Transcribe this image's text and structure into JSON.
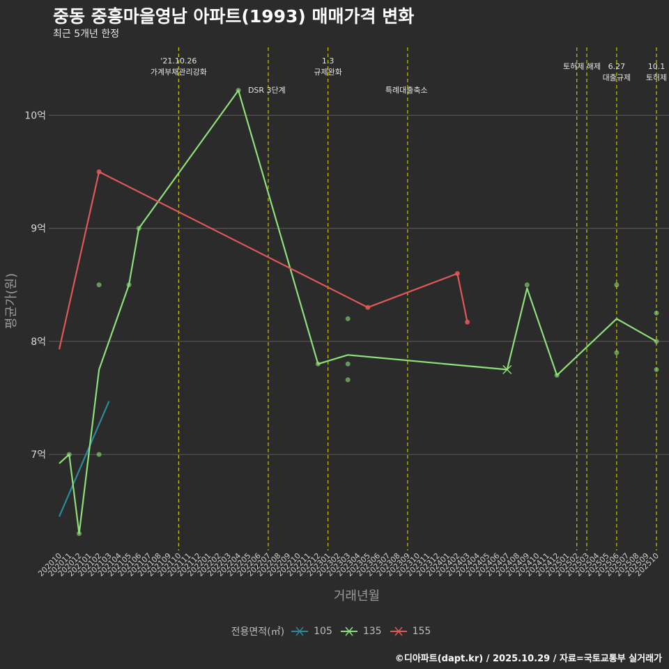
{
  "title": "중동 중흥마을영남 아파트(1993) 매매가격 변화",
  "subtitle": "최근 5개년 한정",
  "caption": "©디아파트(dapt.kr) / 2025.10.29 / 자료=국토교통부 실거래가",
  "legend": {
    "title": "전용면적(㎡)",
    "items": [
      {
        "label": "105",
        "color": "#2a8c99"
      },
      {
        "label": "135",
        "color": "#8ee07a"
      },
      {
        "label": "155",
        "color": "#e05858"
      }
    ]
  },
  "chart_data": {
    "type": "line",
    "title": "중동 중흥마을영남 아파트(1993) 매매가격 변화",
    "xlabel": "거래년월",
    "ylabel": "평균가(원)",
    "ylim": [
      6.15,
      10.6
    ],
    "yticks": [
      {
        "v": 7,
        "label": "7억"
      },
      {
        "v": 8,
        "label": "8억"
      },
      {
        "v": 9,
        "label": "9억"
      },
      {
        "v": 10,
        "label": "10억"
      }
    ],
    "categories": [
      "202010",
      "202011",
      "202012",
      "202101",
      "202102",
      "202103",
      "202104",
      "202105",
      "202106",
      "202107",
      "202108",
      "202109",
      "202110",
      "202111",
      "202112",
      "202201",
      "202202",
      "202203",
      "202204",
      "202205",
      "202206",
      "202207",
      "202208",
      "202209",
      "202210",
      "202211",
      "202212",
      "202301",
      "202302",
      "202303",
      "202304",
      "202305",
      "202306",
      "202307",
      "202308",
      "202309",
      "202310",
      "202311",
      "202312",
      "202401",
      "202402",
      "202403",
      "202404",
      "202405",
      "202406",
      "202407",
      "202408",
      "202409",
      "202410",
      "202411",
      "202412",
      "202501",
      "202502",
      "202503",
      "202504",
      "202505",
      "202506",
      "202507",
      "202508",
      "202509",
      "202510"
    ],
    "series": [
      {
        "name": "105",
        "color": "#2a8c99",
        "line": [
          [
            "202010",
            6.45
          ],
          [
            "202103",
            7.47
          ]
        ],
        "points": [],
        "x_markers": []
      },
      {
        "name": "135",
        "color": "#8ee07a",
        "line": [
          [
            "202010",
            6.92
          ],
          [
            "202011",
            7.0
          ],
          [
            "202012",
            6.3
          ],
          [
            "202102",
            7.75
          ],
          [
            "202105",
            8.5
          ],
          [
            "202106",
            9.0
          ],
          [
            "202204",
            10.22
          ],
          [
            "202212",
            7.8
          ],
          [
            "202303",
            7.88
          ],
          [
            "202407",
            7.75
          ],
          [
            "202409",
            8.47
          ],
          [
            "202412",
            7.7
          ],
          [
            "202506",
            8.2
          ],
          [
            "202510",
            8.0
          ]
        ],
        "points": [
          [
            "202011",
            7.0
          ],
          [
            "202012",
            6.3
          ],
          [
            "202102",
            8.5
          ],
          [
            "202102",
            7.0
          ],
          [
            "202105",
            8.5
          ],
          [
            "202106",
            9.0
          ],
          [
            "202204",
            10.22
          ],
          [
            "202212",
            7.8
          ],
          [
            "202303",
            8.2
          ],
          [
            "202303",
            7.8
          ],
          [
            "202303",
            7.66
          ],
          [
            "202409",
            8.5
          ],
          [
            "202412",
            7.7
          ],
          [
            "202506",
            8.5
          ],
          [
            "202506",
            7.9
          ],
          [
            "202510",
            8.25
          ],
          [
            "202510",
            8.0
          ],
          [
            "202510",
            7.75
          ]
        ],
        "x_markers": [
          [
            "202407",
            7.75
          ]
        ]
      },
      {
        "name": "155",
        "color": "#e05858",
        "line": [
          [
            "202010",
            7.93
          ],
          [
            "202102",
            9.5
          ],
          [
            "202305",
            8.3
          ],
          [
            "202402",
            8.6
          ],
          [
            "202403",
            8.17
          ]
        ],
        "points": [
          [
            "202102",
            9.5
          ],
          [
            "202305",
            8.3
          ],
          [
            "202402",
            8.6
          ],
          [
            "202403",
            8.17
          ]
        ],
        "x_markers": []
      }
    ],
    "events": [
      {
        "month": "202110",
        "lines": [
          "'21.10.26",
          "가계부채관리강화"
        ],
        "row": 0
      },
      {
        "month": "202207",
        "lines": [
          "DSR 3단계"
        ],
        "row": 2
      },
      {
        "month": "202301",
        "lines": [
          "1.3",
          "규제완화"
        ],
        "row": 0
      },
      {
        "month": "202309",
        "lines": [
          "특례대출축소"
        ],
        "row": 2
      },
      {
        "month": "202502",
        "lines": [],
        "row": 0
      },
      {
        "month": "202503",
        "lines": [
          "토허제 해제"
        ],
        "row": 1
      },
      {
        "month": "202506",
        "lines": [
          "6.27",
          "대출규제"
        ],
        "row": 1
      },
      {
        "month": "202510",
        "lines": [
          "10.1",
          "토허제"
        ],
        "row": 1
      }
    ]
  }
}
